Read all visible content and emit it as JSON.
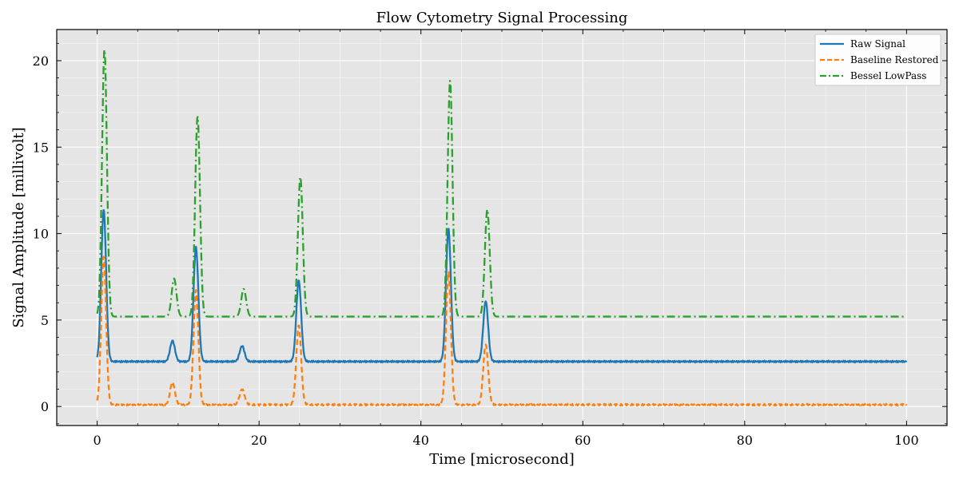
{
  "chart_data": {
    "type": "line",
    "title": "Flow Cytometry Signal Processing",
    "xlabel": "Time [microsecond]",
    "ylabel": "Signal Amplitude [millivolt]",
    "xlim": [
      -5,
      105
    ],
    "ylim": [
      -1.1,
      21.8
    ],
    "xticks": [
      0,
      20,
      40,
      60,
      80,
      100
    ],
    "yticks": [
      0,
      5,
      10,
      15,
      20
    ],
    "grid": true,
    "legend_position": "top-right",
    "background": "#e5e5e5",
    "series": [
      {
        "name": "Raw Signal",
        "color": "#1f77b4",
        "dash": "solid",
        "baseline": 2.6,
        "peaks": [
          {
            "t": 0.8,
            "amp": 8.8
          },
          {
            "t": 9.3,
            "amp": 1.2
          },
          {
            "t": 12.2,
            "amp": 6.6
          },
          {
            "t": 17.9,
            "amp": 0.9
          },
          {
            "t": 24.9,
            "amp": 4.7
          },
          {
            "t": 43.4,
            "amp": 7.7
          },
          {
            "t": 48.0,
            "amp": 3.5
          }
        ]
      },
      {
        "name": "Baseline Restored",
        "color": "#ff7f0e",
        "dash": "dashed",
        "baseline": 0.1,
        "peaks": [
          {
            "t": 0.8,
            "amp": 8.6
          },
          {
            "t": 9.3,
            "amp": 1.3
          },
          {
            "t": 12.2,
            "amp": 6.6
          },
          {
            "t": 17.9,
            "amp": 0.9
          },
          {
            "t": 24.9,
            "amp": 4.6
          },
          {
            "t": 43.4,
            "amp": 7.7
          },
          {
            "t": 48.0,
            "amp": 3.5
          }
        ]
      },
      {
        "name": "Bessel LowPass",
        "color": "#2ca02c",
        "dash": "dashdot",
        "baseline": 5.2,
        "peaks": [
          {
            "t": 0.9,
            "amp": 15.5
          },
          {
            "t": 9.5,
            "amp": 2.2
          },
          {
            "t": 12.4,
            "amp": 11.6
          },
          {
            "t": 18.1,
            "amp": 1.6
          },
          {
            "t": 25.1,
            "amp": 8.1
          },
          {
            "t": 43.6,
            "amp": 13.7
          },
          {
            "t": 48.2,
            "amp": 6.2
          }
        ]
      }
    ]
  }
}
